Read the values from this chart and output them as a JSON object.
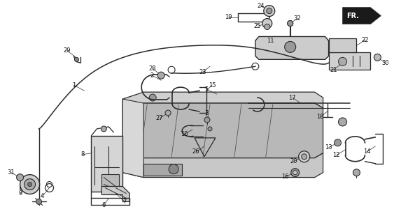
{
  "bg_color": "#ffffff",
  "line_color": "#2a2a2a",
  "text_color": "#111111",
  "figsize": [
    5.83,
    3.2
  ],
  "dpi": 100,
  "cable_color": "#333333",
  "fill_gray": "#c8c8c8",
  "fill_light": "#e0e0e0"
}
